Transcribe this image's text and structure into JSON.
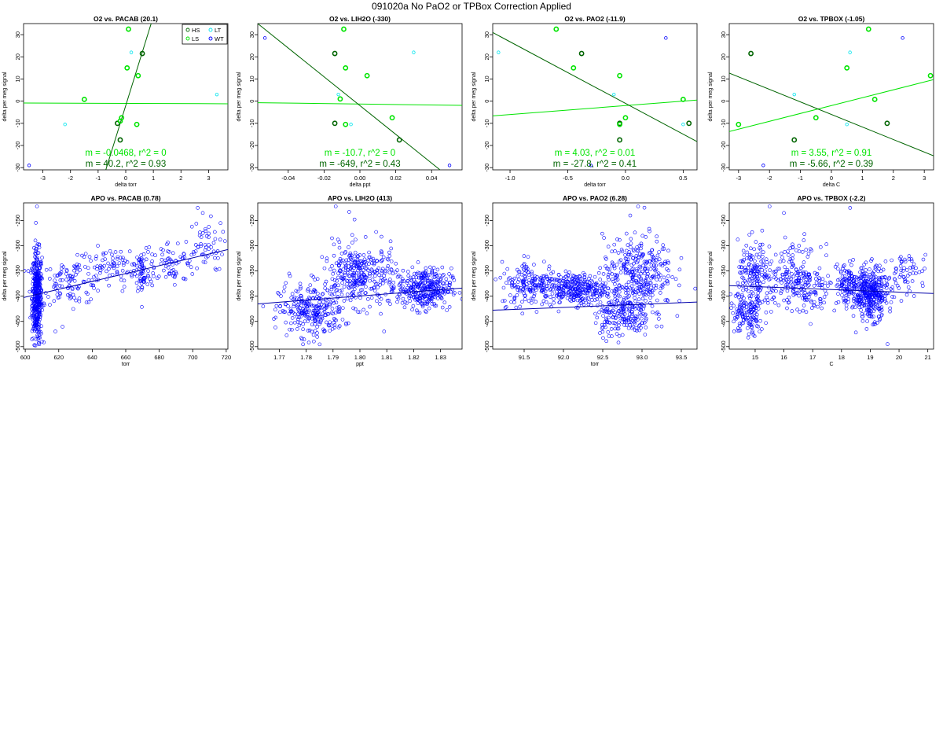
{
  "page": {
    "title": "091020a   No PaO2 or TPBox Correction Applied"
  },
  "colors": {
    "HS": "#006400",
    "LS": "#00e400",
    "LT": "#00e5ee",
    "WT": "#0000ff",
    "apo": "#0000ff",
    "fit": "#0000aa"
  },
  "legend": [
    {
      "label": "HS",
      "color": "#006400"
    },
    {
      "label": "LT",
      "color": "#00e5ee"
    },
    {
      "label": "LS",
      "color": "#00e400"
    },
    {
      "label": "WT",
      "color": "#0000ff"
    }
  ],
  "chart_data": [
    {
      "type": "scatter",
      "title": "O2 vs. PACAB (20.1)",
      "xlabel": "delta torr",
      "ylabel": "delta per meg signal",
      "xlim": [
        -3.7,
        3.7
      ],
      "ylim": [
        -31,
        35
      ],
      "xticks": [
        -3,
        -2,
        -1,
        0,
        1,
        2,
        3
      ],
      "xtick_labels": [
        "-3",
        "-2",
        "-1",
        "0",
        "1",
        "2",
        "3"
      ],
      "yticks": [
        -30,
        -20,
        -10,
        0,
        10,
        20,
        30
      ],
      "ytick_labels": [
        "-30",
        "-20",
        "-10",
        "0",
        "10",
        "20",
        "30"
      ],
      "legend": true,
      "series": [
        {
          "name": "HS",
          "points": [
            [
              0.6,
              21.5
            ],
            [
              -0.3,
              -10
            ],
            [
              -0.2,
              -17.5
            ]
          ]
        },
        {
          "name": "LS",
          "points": [
            [
              -1.5,
              0.8
            ],
            [
              0.1,
              32.5
            ],
            [
              0.05,
              15
            ],
            [
              0.45,
              11.5
            ],
            [
              -0.15,
              -7.5
            ],
            [
              -0.2,
              -9
            ],
            [
              0.4,
              -10.5
            ]
          ]
        },
        {
          "name": "LT",
          "points": [
            [
              0.2,
              22
            ],
            [
              -2.2,
              -10.5
            ],
            [
              3.3,
              3
            ]
          ]
        },
        {
          "name": "WT",
          "points": [
            [
              -3.5,
              -29
            ]
          ]
        }
      ],
      "fits": [
        {
          "name": "LS",
          "slope": -0.0468,
          "intercept": -1,
          "label": "m = -0.0468, r^2 = 0"
        },
        {
          "name": "HS",
          "slope": 40.2,
          "intercept": -2,
          "label": "m = 40.2, r^2 = 0.93"
        }
      ]
    },
    {
      "type": "scatter",
      "title": "O2 vs. LIH2O (-330)",
      "xlabel": "delta ppt",
      "ylabel": "delta per meg signal",
      "xlim": [
        -0.057,
        0.057
      ],
      "ylim": [
        -31,
        35
      ],
      "xticks": [
        -0.04,
        -0.02,
        0,
        0.02,
        0.04
      ],
      "xtick_labels": [
        "-0.04",
        "-0.02",
        "0.00",
        "0.02",
        "0.04"
      ],
      "yticks": [
        -30,
        -20,
        -10,
        0,
        10,
        20,
        30
      ],
      "ytick_labels": [
        "-30",
        "-20",
        "-10",
        "0",
        "10",
        "20",
        "30"
      ],
      "legend": false,
      "series": [
        {
          "name": "HS",
          "points": [
            [
              -0.014,
              21.5
            ],
            [
              -0.014,
              -10
            ],
            [
              0.022,
              -17.5
            ]
          ]
        },
        {
          "name": "LS",
          "points": [
            [
              -0.011,
              1
            ],
            [
              -0.009,
              32.5
            ],
            [
              -0.008,
              15
            ],
            [
              0.004,
              11.5
            ],
            [
              0.018,
              -7.5
            ],
            [
              -0.008,
              -10.5
            ]
          ]
        },
        {
          "name": "LT",
          "points": [
            [
              0.03,
              22
            ],
            [
              -0.012,
              3
            ],
            [
              -0.005,
              -10.5
            ]
          ]
        },
        {
          "name": "WT",
          "points": [
            [
              -0.053,
              28.5
            ],
            [
              0.05,
              -29
            ]
          ]
        }
      ],
      "fits": [
        {
          "name": "LS",
          "slope": -10.7,
          "intercept": -1.3,
          "label": "m = -10.7, r^2 = 0"
        },
        {
          "name": "HS",
          "slope": -649,
          "intercept": -2,
          "label": "m = -649, r^2 = 0.43"
        }
      ]
    },
    {
      "type": "scatter",
      "title": "O2 vs. PAO2 (-11.9)",
      "xlabel": "delta torr",
      "ylabel": "delta per meg signal",
      "xlim": [
        -1.15,
        0.62
      ],
      "ylim": [
        -31,
        35
      ],
      "xticks": [
        -1,
        -0.5,
        0,
        0.5
      ],
      "xtick_labels": [
        "-1.0",
        "-0.5",
        "0.0",
        "0.5"
      ],
      "yticks": [
        -30,
        -20,
        -10,
        0,
        10,
        20,
        30
      ],
      "ytick_labels": [
        "-30",
        "-20",
        "-10",
        "0",
        "10",
        "20",
        "30"
      ],
      "legend": false,
      "series": [
        {
          "name": "HS",
          "points": [
            [
              -0.38,
              21.5
            ],
            [
              -0.05,
              -10
            ],
            [
              -0.05,
              -17.5
            ],
            [
              0.55,
              -10
            ]
          ]
        },
        {
          "name": "LS",
          "points": [
            [
              -0.6,
              32.5
            ],
            [
              -0.45,
              15
            ],
            [
              -0.05,
              11.5
            ],
            [
              0.0,
              -7.5
            ],
            [
              0.5,
              0.8
            ],
            [
              -0.05,
              -10.5
            ]
          ]
        },
        {
          "name": "LT",
          "points": [
            [
              -1.1,
              22
            ],
            [
              -0.1,
              3
            ],
            [
              0.5,
              -10.5
            ]
          ]
        },
        {
          "name": "WT",
          "points": [
            [
              0.35,
              28.5
            ],
            [
              -0.3,
              -29
            ]
          ]
        }
      ],
      "fits": [
        {
          "name": "LS",
          "slope": 4.03,
          "intercept": -2,
          "label": "m = 4.03, r^2 = 0.01"
        },
        {
          "name": "HS",
          "slope": -27.8,
          "intercept": -1,
          "label": "m = -27.8, r^2 = 0.41"
        }
      ]
    },
    {
      "type": "scatter",
      "title": "O2 vs. TPBOX (-1.05)",
      "xlabel": "delta C",
      "ylabel": "delta per meg signal",
      "xlim": [
        -3.3,
        3.3
      ],
      "ylim": [
        -31,
        35
      ],
      "xticks": [
        -3,
        -2,
        -1,
        0,
        1,
        2,
        3
      ],
      "xtick_labels": [
        "-3",
        "-2",
        "-1",
        "0",
        "1",
        "2",
        "3"
      ],
      "yticks": [
        -30,
        -20,
        -10,
        0,
        10,
        20,
        30
      ],
      "ytick_labels": [
        "-30",
        "-20",
        "-10",
        "0",
        "10",
        "20",
        "30"
      ],
      "legend": false,
      "series": [
        {
          "name": "HS",
          "points": [
            [
              -2.6,
              21.5
            ],
            [
              1.8,
              -10
            ],
            [
              -1.2,
              -17.5
            ]
          ]
        },
        {
          "name": "LS",
          "points": [
            [
              1.2,
              32.5
            ],
            [
              0.5,
              15
            ],
            [
              3.2,
              11.5
            ],
            [
              -0.5,
              -7.5
            ],
            [
              1.4,
              0.8
            ],
            [
              -3.0,
              -10.5
            ]
          ]
        },
        {
          "name": "LT",
          "points": [
            [
              0.6,
              22
            ],
            [
              -1.2,
              3
            ],
            [
              0.5,
              -10.5
            ]
          ]
        },
        {
          "name": "WT",
          "points": [
            [
              2.3,
              28.5
            ],
            [
              -2.2,
              -29
            ]
          ]
        }
      ],
      "fits": [
        {
          "name": "LS",
          "slope": 3.55,
          "intercept": -2,
          "label": "m = 3.55, r^2 = 0.91"
        },
        {
          "name": "HS",
          "slope": -5.66,
          "intercept": -6,
          "label": "m = -5.66, r^2 = 0.39"
        }
      ]
    },
    {
      "type": "scatter",
      "title": "APO vs. PACAB (0.78)",
      "xlabel": "torr",
      "ylabel": "delta per meg signal",
      "xlim": [
        599,
        721
      ],
      "ylim": [
        -505,
        -215
      ],
      "xticks": [
        600,
        620,
        640,
        660,
        680,
        700,
        720
      ],
      "xtick_labels": [
        "600",
        "620",
        "640",
        "660",
        "680",
        "700",
        "720"
      ],
      "yticks": [
        -500,
        -450,
        -400,
        -350,
        -300,
        -250
      ],
      "ytick_labels": [
        "-500",
        "-450",
        "-400",
        "-350",
        "-300",
        "-250"
      ],
      "fit": {
        "slope": 0.78,
        "intercept": -870
      },
      "clusters": [
        {
          "n": 420,
          "cx": 607,
          "sx": 1.5,
          "cy": -402,
          "sy": 45
        },
        {
          "n": 110,
          "cx": 628,
          "sx": 10,
          "cy": -372,
          "sy": 22
        },
        {
          "n": 80,
          "cx": 652,
          "sx": 10,
          "cy": -345,
          "sy": 20
        },
        {
          "n": 50,
          "cx": 670,
          "sx": 2,
          "cy": -350,
          "sy": 25
        },
        {
          "n": 80,
          "cx": 686,
          "sx": 9,
          "cy": -335,
          "sy": 22
        },
        {
          "n": 50,
          "cx": 707,
          "sx": 6,
          "cy": -300,
          "sy": 25
        }
      ],
      "outliers": [
        [
          607,
          -222
        ],
        [
          703,
          -225
        ],
        [
          706,
          -235
        ],
        [
          618,
          -470
        ],
        [
          608,
          -493
        ],
        [
          610,
          -490
        ]
      ]
    },
    {
      "type": "scatter",
      "title": "APO vs. LIH2O (413)",
      "xlabel": "ppt",
      "ylabel": "delta per meg signal",
      "xlim": [
        1.762,
        1.838
      ],
      "ylim": [
        -505,
        -215
      ],
      "xticks": [
        1.77,
        1.78,
        1.79,
        1.8,
        1.81,
        1.82,
        1.83
      ],
      "xtick_labels": [
        "1.77",
        "1.78",
        "1.79",
        "1.80",
        "1.81",
        "1.82",
        "1.83"
      ],
      "yticks": [
        -500,
        -450,
        -400,
        -350,
        -300,
        -250
      ],
      "ytick_labels": [
        "-500",
        "-450",
        "-400",
        "-350",
        "-300",
        "-250"
      ],
      "fit": {
        "slope": 413,
        "intercept": -1143
      },
      "clusters": [
        {
          "n": 260,
          "cx": 1.782,
          "sx": 0.006,
          "cy": -430,
          "sy": 25
        },
        {
          "n": 330,
          "cx": 1.8,
          "sx": 0.007,
          "cy": -360,
          "sy": 30
        },
        {
          "n": 330,
          "cx": 1.824,
          "sx": 0.005,
          "cy": -385,
          "sy": 20
        }
      ],
      "outliers": [
        [
          1.791,
          -222
        ],
        [
          1.796,
          -233
        ],
        [
          1.798,
          -248
        ],
        [
          1.774,
          -360
        ],
        [
          1.809,
          -470
        ],
        [
          1.781,
          -492
        ],
        [
          1.768,
          -445
        ]
      ]
    },
    {
      "type": "scatter",
      "title": "APO vs. PAO2 (6.28)",
      "xlabel": "torr",
      "ylabel": "delta per meg signal",
      "xlim": [
        91.1,
        93.7
      ],
      "ylim": [
        -505,
        -215
      ],
      "xticks": [
        91.5,
        92.0,
        92.5,
        93.0,
        93.5
      ],
      "xtick_labels": [
        "91.5",
        "92.0",
        "92.5",
        "93.0",
        "93.5"
      ],
      "yticks": [
        -500,
        -450,
        -400,
        -350,
        -300,
        -250
      ],
      "ytick_labels": [
        "-500",
        "-450",
        "-400",
        "-350",
        "-300",
        "-250"
      ],
      "fit": {
        "slope": 6.28,
        "intercept": -1000
      },
      "clusters": [
        {
          "n": 180,
          "cx": 91.6,
          "sx": 0.2,
          "cy": -375,
          "sy": 22
        },
        {
          "n": 280,
          "cx": 92.15,
          "sx": 0.2,
          "cy": -385,
          "sy": 15
        },
        {
          "n": 300,
          "cx": 92.95,
          "sx": 0.22,
          "cy": -350,
          "sy": 35
        },
        {
          "n": 220,
          "cx": 92.75,
          "sx": 0.18,
          "cy": -430,
          "sy": 25
        }
      ],
      "outliers": [
        [
          92.95,
          -222
        ],
        [
          92.85,
          -240
        ],
        [
          91.55,
          -322
        ],
        [
          93.25,
          -460
        ],
        [
          92.7,
          -492
        ]
      ]
    },
    {
      "type": "scatter",
      "title": "APO vs. TPBOX (-2.2)",
      "xlabel": "C",
      "ylabel": "delta per meg signal",
      "xlim": [
        14.1,
        21.2
      ],
      "ylim": [
        -505,
        -215
      ],
      "xticks": [
        15,
        16,
        17,
        18,
        19,
        20,
        21
      ],
      "xtick_labels": [
        "15",
        "16",
        "17",
        "18",
        "19",
        "20",
        "21"
      ],
      "yticks": [
        -500,
        -450,
        -400,
        -350,
        -300,
        -250
      ],
      "ytick_labels": [
        "-500",
        "-450",
        "-400",
        "-350",
        "-300",
        "-250"
      ],
      "fit": {
        "slope": -2.2,
        "intercept": -348
      },
      "clusters": [
        {
          "n": 170,
          "cx": 15.0,
          "sx": 0.3,
          "cy": -365,
          "sy": 35
        },
        {
          "n": 120,
          "cx": 14.7,
          "sx": 0.3,
          "cy": -440,
          "sy": 20
        },
        {
          "n": 180,
          "cx": 16.3,
          "sx": 0.5,
          "cy": -360,
          "sy": 30
        },
        {
          "n": 60,
          "cx": 17.0,
          "sx": 0.3,
          "cy": -395,
          "sy": 25
        },
        {
          "n": 100,
          "cx": 18.2,
          "sx": 0.2,
          "cy": -375,
          "sy": 20
        },
        {
          "n": 380,
          "cx": 19.0,
          "sx": 0.3,
          "cy": -395,
          "sy": 25
        },
        {
          "n": 60,
          "cx": 20.3,
          "sx": 0.35,
          "cy": -355,
          "sy": 20
        }
      ],
      "outliers": [
        [
          15.5,
          -222
        ],
        [
          16.0,
          -235
        ],
        [
          18.3,
          -225
        ],
        [
          19.6,
          -495
        ],
        [
          18.5,
          -472
        ]
      ]
    }
  ]
}
